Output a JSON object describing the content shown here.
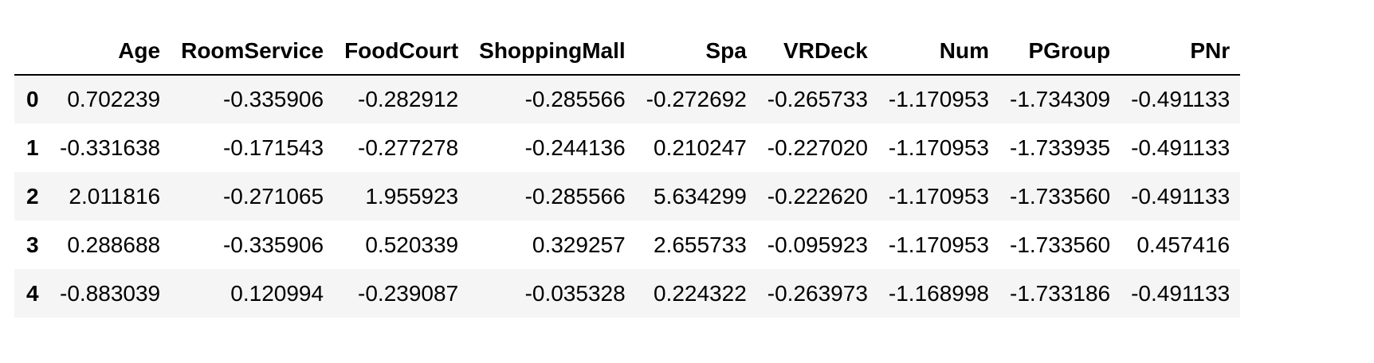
{
  "table": {
    "columns": [
      "",
      "Age",
      "RoomService",
      "FoodCourt",
      "ShoppingMall",
      "Spa",
      "VRDeck",
      "Num",
      "PGroup",
      "PNr"
    ],
    "rows": [
      {
        "index": "0",
        "values": [
          "0.702239",
          "-0.335906",
          "-0.282912",
          "-0.285566",
          "-0.272692",
          "-0.265733",
          "-1.170953",
          "-1.734309",
          "-0.491133"
        ]
      },
      {
        "index": "1",
        "values": [
          "-0.331638",
          "-0.171543",
          "-0.277278",
          "-0.244136",
          "0.210247",
          "-0.227020",
          "-1.170953",
          "-1.733935",
          "-0.491133"
        ]
      },
      {
        "index": "2",
        "values": [
          "2.011816",
          "-0.271065",
          "1.955923",
          "-0.285566",
          "5.634299",
          "-0.222620",
          "-1.170953",
          "-1.733560",
          "-0.491133"
        ]
      },
      {
        "index": "3",
        "values": [
          "0.288688",
          "-0.335906",
          "0.520339",
          "0.329257",
          "2.655733",
          "-0.095923",
          "-1.170953",
          "-1.733560",
          "0.457416"
        ]
      },
      {
        "index": "4",
        "values": [
          "-0.883039",
          "0.120994",
          "-0.239087",
          "-0.035328",
          "0.224322",
          "-0.263973",
          "-1.168998",
          "-1.733186",
          "-0.491133"
        ]
      }
    ]
  }
}
